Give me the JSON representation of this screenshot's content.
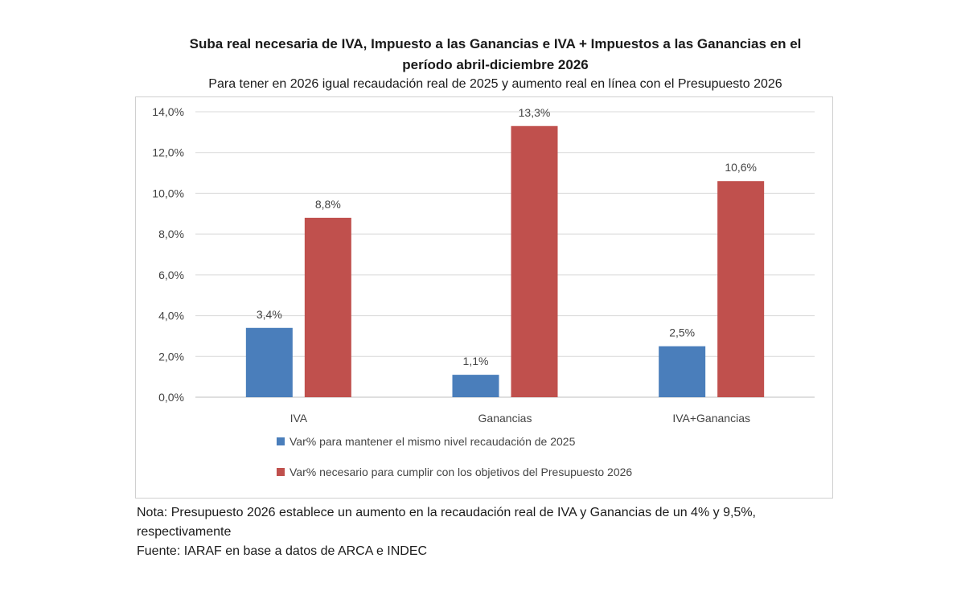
{
  "chart_data": {
    "type": "bar",
    "title": "Suba real necesaria de IVA, Impuesto a las Ganancias e IVA + Impuestos a las Ganancias en el período abril-diciembre 2026",
    "title_lines": [
      "Suba real necesaria de IVA, Impuesto a las Ganancias e IVA + Impuestos a las Ganancias en el",
      "período abril-diciembre 2026"
    ],
    "subtitle": "Para tener en 2026 igual recaudación real de 2025 y aumento real en línea con el Presupuesto 2026",
    "categories": [
      "IVA",
      "Ganancias",
      "IVA+Ganancias"
    ],
    "series": [
      {
        "name": "Var% para mantener el mismo nivel recaudación de 2025",
        "values": [
          3.4,
          1.1,
          2.5
        ],
        "labels": [
          "3,4%",
          "1,1%",
          "2,5%"
        ],
        "color": "#4a7ebb"
      },
      {
        "name": "Var% necesario para cumplir con los objetivos del Presupuesto 2026",
        "values": [
          8.8,
          13.3,
          10.6
        ],
        "labels": [
          "8,8%",
          "13,3%",
          "10,6%"
        ],
        "color": "#c0504d"
      }
    ],
    "ylim": [
      0,
      14
    ],
    "yticks": [
      0,
      2,
      4,
      6,
      8,
      10,
      12,
      14
    ],
    "ytick_labels": [
      "0,0%",
      "2,0%",
      "4,0%",
      "6,0%",
      "8,0%",
      "10,0%",
      "12,0%",
      "14,0%"
    ],
    "xlabel": "",
    "ylabel": "",
    "grid": true,
    "legend_position": "bottom"
  },
  "notes": {
    "line1": "Nota: Presupuesto 2026 establece un aumento en la recaudación real de IVA y Ganancias de un 4% y 9,5%,",
    "line2": "respectivamente",
    "source": "Fuente: IARAF en base a datos de ARCA e INDEC"
  }
}
